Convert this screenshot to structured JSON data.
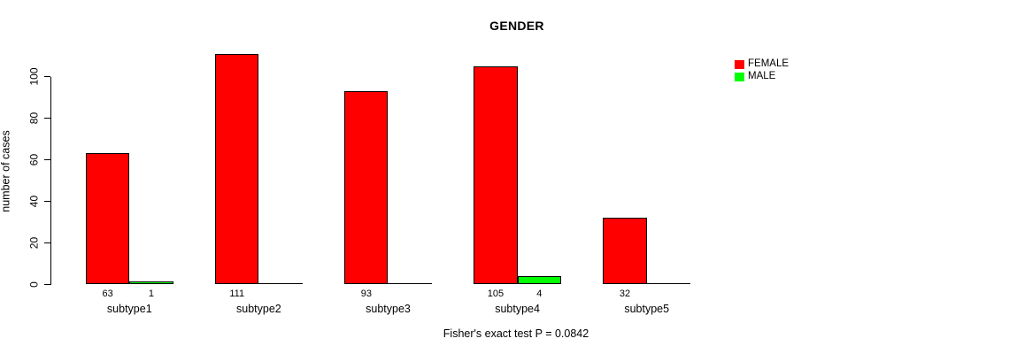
{
  "chart_data": {
    "type": "bar",
    "title": "GENDER",
    "ylabel": "number of cases",
    "footnote": "Fisher's exact test P = 0.0842",
    "categories": [
      "subtype1",
      "subtype2",
      "subtype3",
      "subtype4",
      "subtype5"
    ],
    "series": [
      {
        "name": "FEMALE",
        "color": "#FF0000",
        "values": [
          63,
          111,
          93,
          105,
          32
        ],
        "value_labels": [
          "63",
          "111",
          "93",
          "105",
          "32"
        ]
      },
      {
        "name": "MALE",
        "color": "#00FF00",
        "values": [
          1,
          0,
          0,
          4,
          0
        ],
        "value_labels": [
          "1",
          "",
          "",
          "4",
          ""
        ]
      }
    ],
    "yticks": [
      "0",
      "20",
      "40",
      "60",
      "80",
      "100"
    ],
    "ylim": [
      0,
      111
    ],
    "grid": "off",
    "legend_position": "right"
  }
}
